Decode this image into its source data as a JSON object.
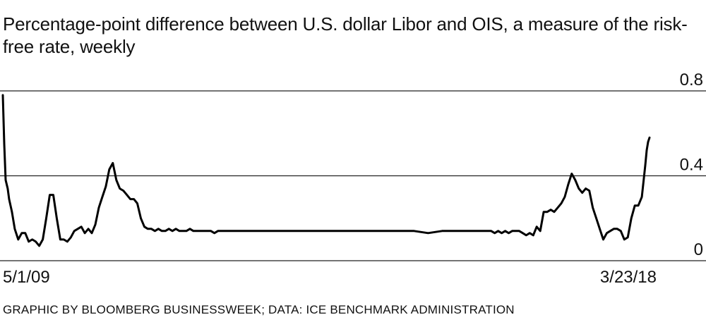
{
  "header": {
    "subtitle": "Percentage-point difference between U.S. dollar Libor and OIS, a measure of the risk-free rate, weekly"
  },
  "footer": {
    "credit": "GRAPHIC BY BLOOMBERG BUSINESSWEEK; DATA: ICE BENCHMARK ADMINISTRATION"
  },
  "chart_data": {
    "type": "line",
    "title": "",
    "subtitle": "Percentage-point difference between U.S. dollar Libor and OIS, a measure of the risk-free rate, weekly",
    "xlabel": "",
    "ylabel": "",
    "x_tick_labels": [
      "5/1/09",
      "3/23/18"
    ],
    "y_ticks": [
      0,
      0.4,
      0.8
    ],
    "y_tick_labels": [
      "0",
      "0.4",
      "0.8"
    ],
    "ylim": [
      0,
      0.8
    ],
    "xlim": [
      2009.33,
      2018.56
    ],
    "grid": "horizontal",
    "line_color": "#000000",
    "series": [
      {
        "x": [
          2009.33,
          2009.35,
          2009.37,
          2009.4,
          2009.42,
          2009.46,
          2009.5,
          2009.55,
          2009.6,
          2009.65,
          2009.7,
          2009.75,
          2009.8,
          2009.85,
          2009.9,
          2009.95,
          2010.0,
          2010.05,
          2010.1,
          2010.15,
          2010.2,
          2010.25,
          2010.3,
          2010.35,
          2010.4,
          2010.45,
          2010.5,
          2010.55,
          2010.6,
          2010.65,
          2010.7,
          2010.75,
          2010.8,
          2010.85,
          2010.9,
          2010.95,
          2011.0,
          2011.05,
          2011.1,
          2011.15,
          2011.2,
          2011.25,
          2011.3,
          2011.35,
          2011.4,
          2011.45,
          2011.5,
          2011.55,
          2011.6,
          2011.65,
          2011.7,
          2011.75,
          2011.8,
          2011.85,
          2011.9,
          2011.95,
          2012.0,
          2012.05,
          2012.1,
          2012.15,
          2012.2,
          2012.25,
          2012.3,
          2012.35,
          2012.4,
          2012.45,
          2012.5,
          2012.6,
          2012.7,
          2012.8,
          2012.9,
          2013.0,
          2013.2,
          2013.4,
          2013.6,
          2013.8,
          2014.0,
          2014.2,
          2014.4,
          2014.6,
          2014.8,
          2015.0,
          2015.2,
          2015.4,
          2015.6,
          2015.8,
          2016.0,
          2016.1,
          2016.2,
          2016.3,
          2016.35,
          2016.4,
          2016.45,
          2016.5,
          2016.55,
          2016.6,
          2016.65,
          2016.7,
          2016.75,
          2016.8,
          2016.85,
          2016.9,
          2016.95,
          2017.0,
          2017.05,
          2017.1,
          2017.15,
          2017.2,
          2017.25,
          2017.3,
          2017.35,
          2017.4,
          2017.45,
          2017.5,
          2017.55,
          2017.6,
          2017.65,
          2017.7,
          2017.75,
          2017.8,
          2017.85,
          2017.9,
          2017.95,
          2018.0,
          2018.05,
          2018.1,
          2018.15,
          2018.2,
          2018.25,
          2018.3,
          2018.35,
          2018.4,
          2018.45,
          2018.5,
          2018.52,
          2018.54,
          2018.56
        ],
        "values": [
          0.78,
          0.55,
          0.38,
          0.34,
          0.29,
          0.23,
          0.15,
          0.1,
          0.13,
          0.13,
          0.09,
          0.1,
          0.09,
          0.07,
          0.1,
          0.2,
          0.31,
          0.31,
          0.2,
          0.1,
          0.1,
          0.09,
          0.11,
          0.14,
          0.15,
          0.16,
          0.13,
          0.15,
          0.13,
          0.17,
          0.25,
          0.3,
          0.35,
          0.43,
          0.46,
          0.38,
          0.34,
          0.33,
          0.31,
          0.29,
          0.29,
          0.27,
          0.2,
          0.16,
          0.15,
          0.15,
          0.14,
          0.15,
          0.14,
          0.14,
          0.15,
          0.14,
          0.15,
          0.14,
          0.14,
          0.14,
          0.15,
          0.14,
          0.14,
          0.14,
          0.14,
          0.14,
          0.14,
          0.13,
          0.14,
          0.14,
          0.14,
          0.14,
          0.14,
          0.14,
          0.14,
          0.14,
          0.14,
          0.14,
          0.14,
          0.14,
          0.14,
          0.14,
          0.14,
          0.14,
          0.14,
          0.14,
          0.14,
          0.13,
          0.14,
          0.14,
          0.14,
          0.14,
          0.14,
          0.14,
          0.13,
          0.14,
          0.13,
          0.14,
          0.13,
          0.14,
          0.14,
          0.14,
          0.13,
          0.12,
          0.13,
          0.12,
          0.16,
          0.14,
          0.23,
          0.23,
          0.24,
          0.23,
          0.25,
          0.27,
          0.3,
          0.36,
          0.41,
          0.38,
          0.34,
          0.32,
          0.34,
          0.33,
          0.25,
          0.2,
          0.15,
          0.1,
          0.13,
          0.14,
          0.15,
          0.15,
          0.14,
          0.1,
          0.11,
          0.2,
          0.26,
          0.26,
          0.3,
          0.45,
          0.52,
          0.56,
          0.58
        ]
      }
    ]
  }
}
